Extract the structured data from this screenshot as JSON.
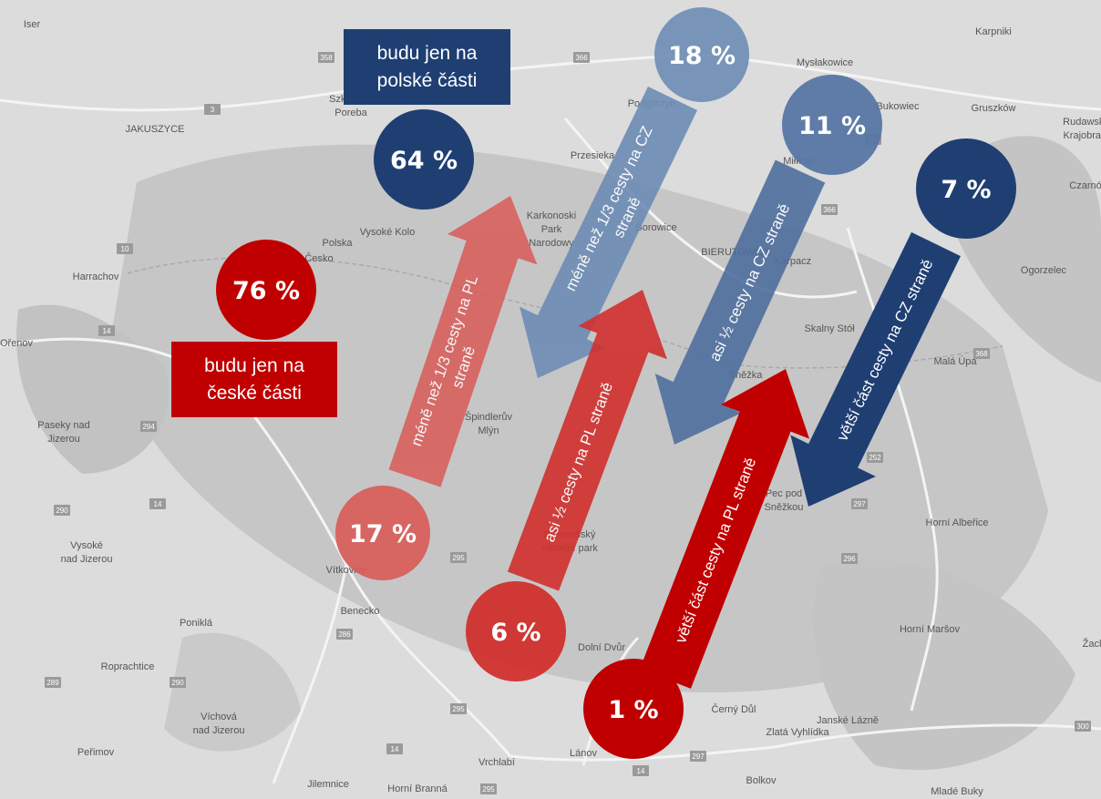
{
  "boxes": [
    {
      "lines": [
        "budu jen na",
        "polské části"
      ]
    },
    {
      "lines": [
        "budu jen na",
        "české části"
      ]
    }
  ],
  "circles": [
    {
      "label": "64 %"
    },
    {
      "label": "76 %"
    },
    {
      "label": "18 %"
    },
    {
      "label": "11 %"
    },
    {
      "label": "7 %"
    },
    {
      "label": "17 %"
    },
    {
      "label": "6 %"
    },
    {
      "label": "1 %"
    }
  ],
  "arrows": [
    {
      "lines": [
        "méně než 1/3 cesty na PL",
        "straně"
      ]
    },
    {
      "lines": [
        "méně než 1/3 cesty na CZ",
        "straně"
      ]
    },
    {
      "lines": [
        "asi ½ cesty na PL straně"
      ]
    },
    {
      "lines": [
        "asi ½ cesty na CZ straně"
      ]
    },
    {
      "lines": [
        "větší část cesty na PL straně"
      ]
    },
    {
      "lines": [
        "větší část cesty na CZ straně"
      ]
    }
  ],
  "places": [
    [
      "Iser"
    ],
    [
      "Szklarska",
      "Poreba"
    ],
    [
      "JAKUSZYCE"
    ],
    [
      "Podgórzyn"
    ],
    [
      "Przesieka"
    ],
    [
      "Mysłakowice"
    ],
    [
      "Karpniki"
    ],
    [
      "Bukowiec"
    ],
    [
      "Gruszków"
    ],
    [
      "Rudawski",
      "Krajobraz"
    ],
    [
      "Miłków"
    ],
    [
      "Czarnów"
    ],
    [
      "Borowice"
    ],
    [
      "Karkonoski",
      "Park",
      "Narodowy"
    ],
    [
      "Vysoké Kolo"
    ],
    [
      "Polska"
    ],
    [
      "Česko"
    ],
    [
      "Karpacz"
    ],
    [
      "BIERUTOWICE"
    ],
    [
      "Harrachov"
    ],
    [
      "Ogorzelec"
    ],
    [
      "Skalny Stół"
    ],
    [
      "Malá Úpa"
    ],
    [
      "Sněžka"
    ],
    [
      "Špindlerův",
      "Mlýn"
    ],
    [
      "Paseky nad",
      "Jizerou"
    ],
    [
      "Horní Albeřice"
    ],
    [
      "Vysoké",
      "nad Jizerou"
    ],
    [
      "Krkonošský",
      "národní park"
    ],
    [
      "Pec pod",
      "Sněžkou"
    ],
    [
      "Vítkovice"
    ],
    [
      "Benecko"
    ],
    [
      "Poniklá"
    ],
    [
      "Horní Maršov"
    ],
    [
      "Roprachtice"
    ],
    [
      "Dolní Dvůr"
    ],
    [
      "Černý Důl"
    ],
    [
      "Janské Lázně"
    ],
    [
      "Zlatá Vyhlídka"
    ],
    [
      "Víchová",
      "nad Jizerou"
    ],
    [
      "Peřimov"
    ],
    [
      "Lánov"
    ],
    [
      "Vrchlabí"
    ],
    [
      "Bolkov"
    ],
    [
      "Jilemnice"
    ],
    [
      "Horní Branná"
    ],
    [
      "Mladé Buky"
    ],
    [
      "Ořenov"
    ],
    [
      "Žacl"
    ]
  ],
  "roads": [
    "358",
    "366",
    "3",
    "367",
    "366",
    "10",
    "14",
    "294",
    "290",
    "14",
    "286",
    "295",
    "297",
    "296",
    "252",
    "368",
    "300",
    "289",
    "290",
    "14",
    "295",
    "297",
    "14",
    "295"
  ]
}
